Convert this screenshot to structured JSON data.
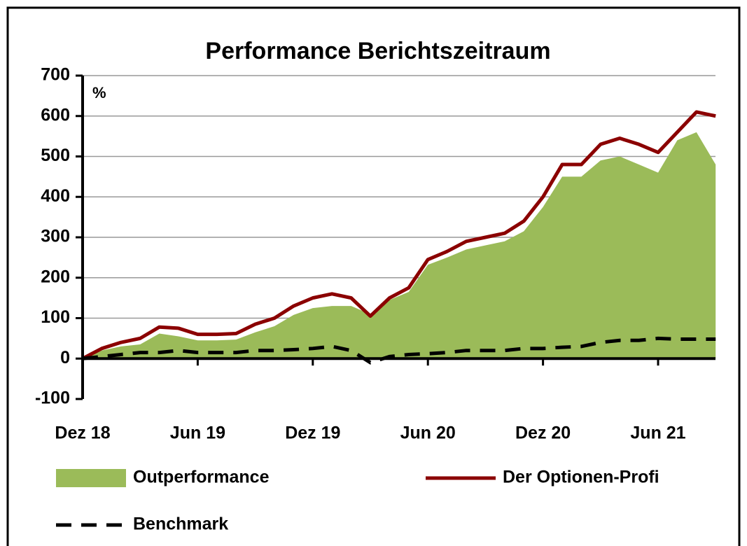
{
  "chart_data": {
    "type": "line",
    "title": "Performance Berichtszeitraum",
    "y_label": "%",
    "categories": [
      "Dez 18",
      null,
      null,
      null,
      null,
      null,
      "Jun 19",
      null,
      null,
      null,
      null,
      null,
      "Dez 19",
      null,
      null,
      null,
      null,
      null,
      "Jun 20",
      null,
      null,
      null,
      null,
      null,
      "Dez 20",
      null,
      null,
      null,
      null,
      null,
      "Jun 21",
      null,
      null,
      null
    ],
    "ylim": [
      -100,
      700
    ],
    "yticks": [
      -100,
      0,
      100,
      200,
      300,
      400,
      500,
      600,
      700
    ],
    "grid": true,
    "series": [
      {
        "name": "Outperformance",
        "color": "#9bbb59",
        "style": "area",
        "values": [
          0,
          20,
          30,
          35,
          62,
          55,
          45,
          45,
          47,
          65,
          80,
          108,
          125,
          130,
          130,
          110,
          145,
          165,
          232,
          250,
          270,
          280,
          290,
          315,
          375,
          450,
          450,
          490,
          500,
          480,
          460,
          540,
          560,
          480
        ]
      },
      {
        "name": "Der Optionen-Profi",
        "color": "#8b0000",
        "style": "solid",
        "values": [
          0,
          25,
          40,
          50,
          78,
          75,
          60,
          60,
          62,
          85,
          100,
          130,
          150,
          160,
          150,
          105,
          150,
          175,
          245,
          265,
          290,
          300,
          310,
          340,
          400,
          480,
          480,
          530,
          545,
          530,
          510,
          560,
          610,
          600
        ]
      },
      {
        "name": "Benchmark",
        "color": "#000000",
        "style": "dashed",
        "values": [
          0,
          5,
          10,
          15,
          15,
          20,
          15,
          15,
          15,
          20,
          20,
          22,
          25,
          30,
          20,
          -10,
          5,
          10,
          12,
          15,
          20,
          20,
          20,
          25,
          25,
          28,
          30,
          40,
          45,
          45,
          50,
          48,
          48,
          48
        ]
      }
    ]
  }
}
